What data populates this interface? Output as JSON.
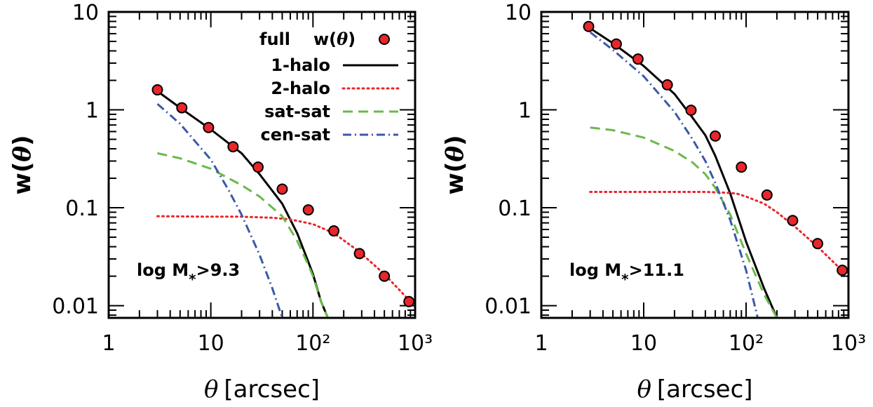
{
  "chart_data": [
    {
      "type": "line",
      "xlabel_var": "θ",
      "xlabel_unit": "[arcsec]",
      "ylabel_text": "w(",
      "ylabel_var": "θ",
      "ylabel_end": ")",
      "xscale": "log",
      "yscale": "log",
      "xlim": [
        1,
        1000
      ],
      "ylim": [
        0.0075,
        10
      ],
      "x_ticks": [
        "1",
        "10",
        "10²",
        "10³"
      ],
      "y_ticks": [
        "10",
        "1",
        "0.1",
        "0.01"
      ],
      "annotation": {
        "prefix": "log M",
        "subscript": "*",
        "suffix": ">9.3"
      },
      "legend": {
        "placement": "top-right",
        "points_label": "full",
        "points_symbol_text": "w(",
        "points_symbol_var": "θ",
        "points_symbol_end": ")",
        "entries": [
          "1-halo",
          "2-halo",
          "sat-sat",
          "cen-sat"
        ]
      },
      "points": {
        "x": [
          3,
          5.2,
          9.5,
          16.5,
          29,
          50,
          90,
          160,
          285,
          500,
          870
        ],
        "y": [
          1.6,
          1.05,
          0.66,
          0.42,
          0.26,
          0.155,
          0.095,
          0.058,
          0.034,
          0.02,
          0.011
        ],
        "color": "#e8262b"
      },
      "series": [
        {
          "name": "1-halo",
          "color": "#000000",
          "style": "solid",
          "x": [
            3,
            5,
            10,
            20,
            30,
            50,
            70,
            90,
            100,
            120,
            140
          ],
          "y": [
            1.55,
            1.05,
            0.63,
            0.36,
            0.22,
            0.11,
            0.055,
            0.028,
            0.021,
            0.011,
            0.0075
          ]
        },
        {
          "name": "2-halo",
          "color": "#e8262b",
          "style": "dotted",
          "x": [
            3,
            10,
            20,
            40,
            60,
            100,
            160,
            280,
            500,
            900
          ],
          "y": [
            0.082,
            0.081,
            0.081,
            0.079,
            0.076,
            0.068,
            0.055,
            0.036,
            0.021,
            0.011
          ]
        },
        {
          "name": "sat-sat",
          "color": "#6ab94a",
          "style": "dashed",
          "x": [
            3,
            5,
            10,
            20,
            30,
            50,
            70,
            90,
            100,
            120,
            140
          ],
          "y": [
            0.36,
            0.32,
            0.25,
            0.17,
            0.13,
            0.082,
            0.046,
            0.026,
            0.02,
            0.011,
            0.0075
          ]
        },
        {
          "name": "cen-sat",
          "color": "#3a59a8",
          "style": "dashdot",
          "x": [
            3,
            5,
            10,
            15,
            20,
            30,
            40,
            50
          ],
          "y": [
            1.15,
            0.72,
            0.31,
            0.15,
            0.085,
            0.033,
            0.015,
            0.0075
          ]
        }
      ]
    },
    {
      "type": "line",
      "xlabel_var": "θ",
      "xlabel_unit": "[arcsec]",
      "ylabel_text": "w(",
      "ylabel_var": "θ",
      "ylabel_end": ")",
      "xscale": "log",
      "yscale": "log",
      "xlim": [
        1,
        1000
      ],
      "ylim": [
        0.0075,
        10
      ],
      "x_ticks": [
        "1",
        "10",
        "10²",
        "10³"
      ],
      "y_ticks": [
        "10",
        "1",
        "0.1",
        "0.01"
      ],
      "annotation": {
        "prefix": "log M",
        "subscript": "*",
        "suffix": ">11.1"
      },
      "points": {
        "x": [
          2.9,
          5.4,
          8.8,
          17,
          29,
          50,
          90,
          160,
          285,
          500,
          870
        ],
        "y": [
          7.1,
          4.7,
          3.3,
          1.8,
          0.99,
          0.54,
          0.26,
          0.135,
          0.074,
          0.043,
          0.023
        ],
        "color": "#e8262b"
      },
      "series": [
        {
          "name": "1-halo",
          "color": "#000000",
          "style": "solid",
          "x": [
            3,
            5,
            10,
            20,
            30,
            40,
            50,
            70,
            100,
            150,
            200
          ],
          "y": [
            6.8,
            4.8,
            2.8,
            1.45,
            0.83,
            0.55,
            0.34,
            0.14,
            0.045,
            0.015,
            0.0075
          ]
        },
        {
          "name": "2-halo",
          "color": "#e8262b",
          "style": "dotted",
          "x": [
            3,
            10,
            20,
            40,
            60,
            80,
            100,
            150,
            200,
            300,
            500,
            900
          ],
          "y": [
            0.145,
            0.145,
            0.145,
            0.145,
            0.143,
            0.14,
            0.13,
            0.11,
            0.09,
            0.064,
            0.04,
            0.022
          ]
        },
        {
          "name": "sat-sat",
          "color": "#6ab94a",
          "style": "dashed",
          "x": [
            3,
            5,
            10,
            20,
            30,
            40,
            50,
            70,
            100,
            150,
            200
          ],
          "y": [
            0.66,
            0.62,
            0.52,
            0.38,
            0.29,
            0.22,
            0.16,
            0.085,
            0.034,
            0.013,
            0.0075
          ]
        },
        {
          "name": "cen-sat",
          "color": "#3a59a8",
          "style": "dashdot",
          "x": [
            3,
            5,
            10,
            20,
            30,
            40,
            50,
            70,
            100,
            130
          ],
          "y": [
            6.2,
            4.1,
            2.2,
            0.95,
            0.5,
            0.3,
            0.18,
            0.075,
            0.023,
            0.0075
          ]
        }
      ]
    }
  ]
}
